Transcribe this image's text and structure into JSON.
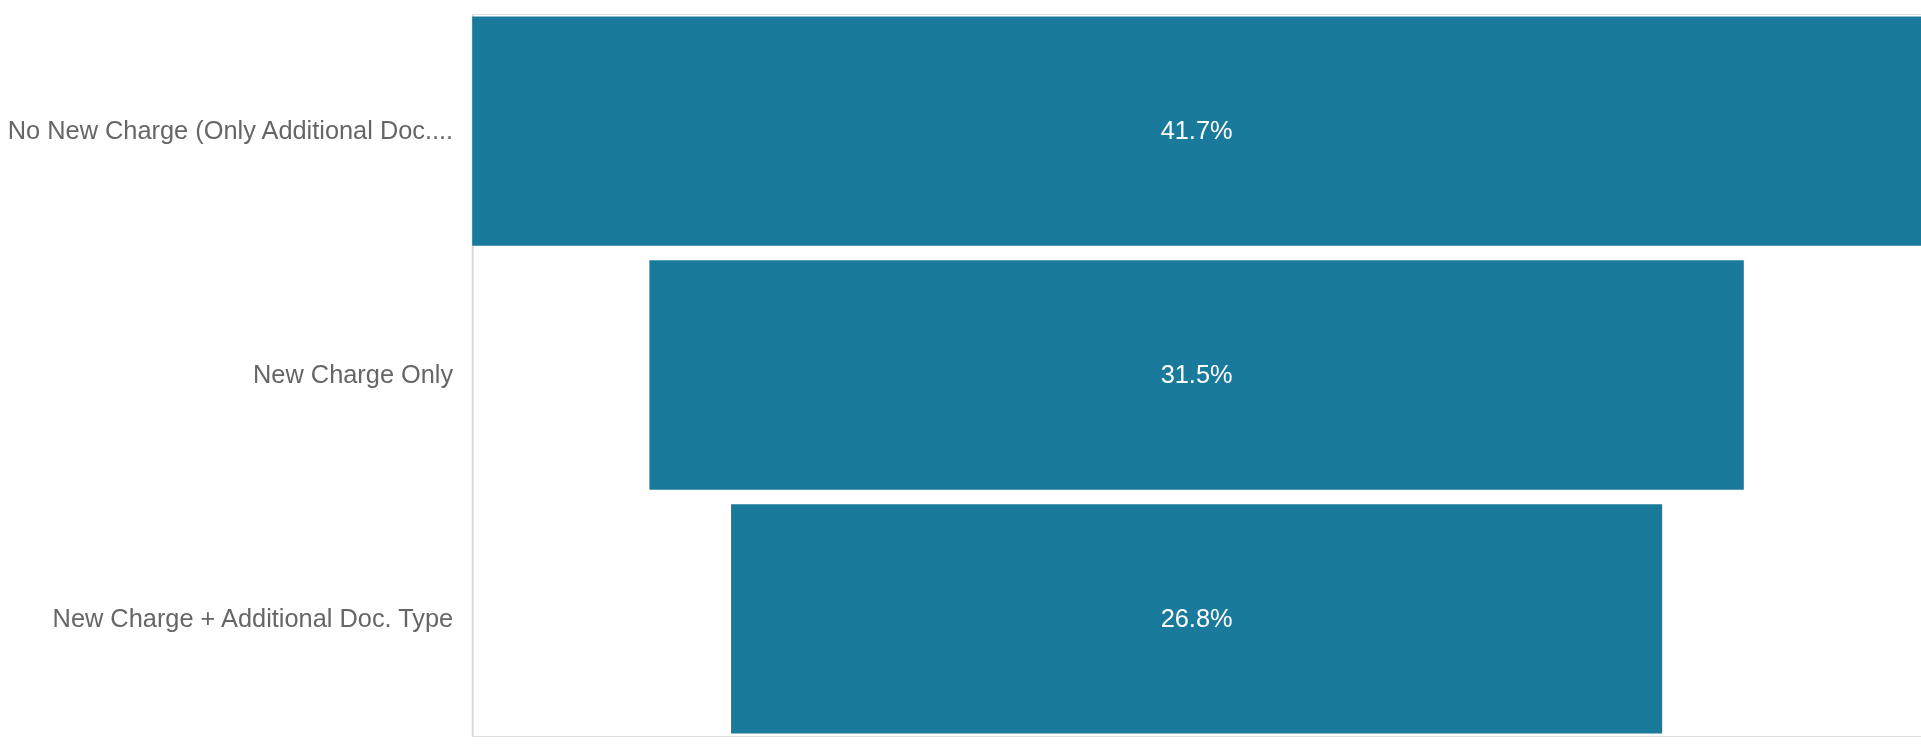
{
  "chart_data": {
    "type": "other",
    "categories": [
      "No New Charge (Only Additional Doc....",
      "New Charge Only",
      "New Charge + Additional Doc. Type"
    ],
    "values": [
      41.7,
      31.5,
      26.8
    ],
    "value_labels": [
      "41.7%",
      "31.5%",
      "26.8%"
    ],
    "color": "#1a7a9c"
  }
}
